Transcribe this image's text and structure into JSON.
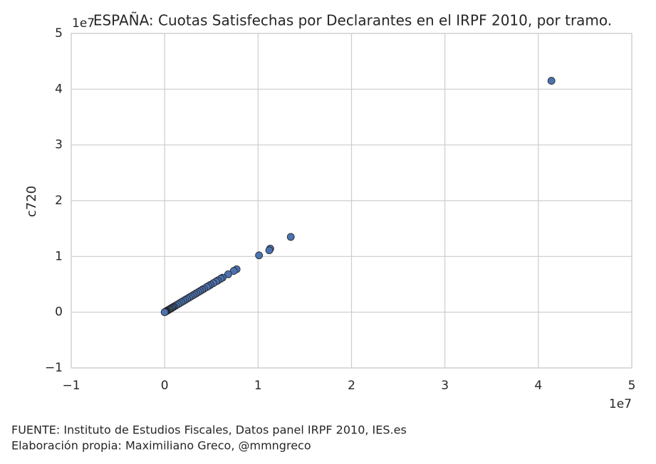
{
  "chart_data": {
    "type": "scatter",
    "title": "ESPAÑA: Cuotas Satisfechas por Declarantes en el IRPF 2010, por tramo.",
    "ylabel": "c720",
    "x_offset_label": "1e7",
    "y_offset_label": "1e7",
    "footnotes": [
      "FUENTE: Instituto de Estudios Fiscales, Datos panel IRPF 2010, IES.es",
      "Elaboración propia: Maximiliano Greco, @mmngreco"
    ],
    "color": "#4c72b0",
    "grid": true,
    "xlim": [
      -1,
      5
    ],
    "ylim": [
      -1,
      5
    ],
    "xticks": [
      {
        "value": -1,
        "label": "−1"
      },
      0,
      1,
      2,
      3,
      4,
      5
    ],
    "yticks": [
      {
        "value": -1,
        "label": "−1"
      },
      0,
      1,
      2,
      3,
      4,
      5
    ],
    "x": [
      4.14,
      1.35,
      1.13,
      1.12,
      1.01,
      0.77,
      0.74,
      0.68,
      0.62,
      0.6,
      0.57,
      0.55,
      0.52,
      0.49,
      0.47,
      0.45,
      0.42,
      0.4,
      0.38,
      0.36,
      0.34,
      0.32,
      0.3,
      0.28,
      0.26,
      0.24,
      0.22,
      0.2,
      0.18,
      0.16,
      0.14,
      0.12,
      0.1,
      0.09,
      0.08,
      0.07,
      0.06,
      0.05,
      0.04,
      0.03,
      0.02,
      0.015,
      0.01,
      0.005,
      0
    ],
    "values": [
      4.15,
      1.35,
      1.14,
      1.11,
      1.02,
      0.77,
      0.74,
      0.68,
      0.62,
      0.6,
      0.57,
      0.55,
      0.52,
      0.49,
      0.47,
      0.45,
      0.42,
      0.4,
      0.38,
      0.36,
      0.34,
      0.32,
      0.3,
      0.28,
      0.26,
      0.24,
      0.22,
      0.2,
      0.18,
      0.16,
      0.14,
      0.12,
      0.1,
      0.09,
      0.08,
      0.07,
      0.06,
      0.05,
      0.04,
      0.03,
      0.02,
      0.015,
      0.01,
      0.005,
      0
    ]
  }
}
